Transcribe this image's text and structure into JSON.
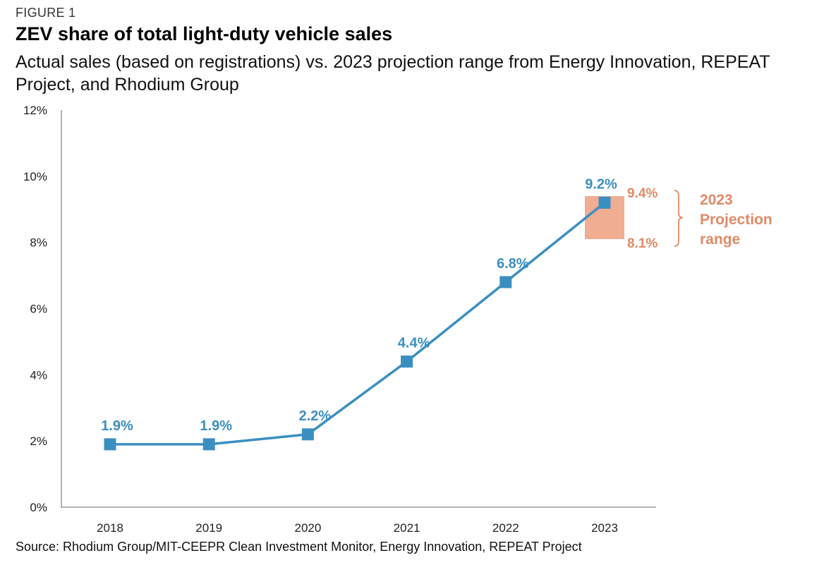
{
  "figure_label": "FIGURE 1",
  "title": "ZEV share of total light-duty vehicle sales",
  "subtitle": "Actual sales (based on registrations) vs. 2023 projection range from Energy Innovation, REPEAT Project, and Rhodium Group",
  "source": "Source: Rhodium Group/MIT-CEEPR Clean Investment Monitor, Energy Innovation, REPEAT Project",
  "colors": {
    "series": "#3a8fc0",
    "projection_fill": "#f0ad92",
    "projection_text": "#e08a66",
    "axis": "#9a9a9a"
  },
  "chart_data": {
    "type": "line",
    "title": "ZEV share of total light-duty vehicle sales",
    "xlabel": "",
    "ylabel": "",
    "categories": [
      "2018",
      "2019",
      "2020",
      "2021",
      "2022",
      "2023"
    ],
    "series": [
      {
        "values": [
          1.9,
          1.9,
          2.2,
          4.4,
          6.8,
          9.2
        ],
        "labels": [
          "1.9%",
          "1.9%",
          "2.2%",
          "4.4%",
          "6.8%",
          "9.2%"
        ]
      }
    ],
    "ylim": [
      0,
      12
    ],
    "yticks": [
      0,
      2,
      4,
      6,
      8,
      10,
      12
    ],
    "ytick_labels": [
      "0%",
      "2%",
      "4%",
      "6%",
      "8%",
      "10%",
      "12%"
    ],
    "grid": false,
    "projection_range": {
      "category": "2023",
      "low": 8.1,
      "high": 9.4,
      "low_label": "8.1%",
      "high_label": "9.4%",
      "annotation": [
        "2023",
        "Projection",
        "range"
      ]
    }
  }
}
